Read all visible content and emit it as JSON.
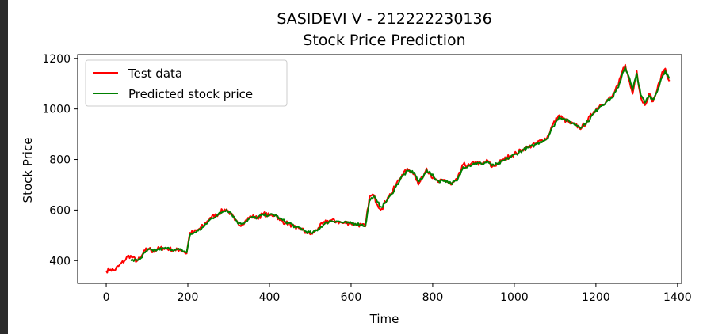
{
  "chart_data": {
    "type": "line",
    "title_line1": "SASIDEVI V - 212222230136",
    "title_line2": "Stock Price Prediction",
    "xlabel": "Time",
    "ylabel": "Stock Price",
    "xlim": [
      -70,
      1410
    ],
    "ylim": [
      310,
      1215
    ],
    "xticks": [
      0,
      200,
      400,
      600,
      800,
      1000,
      1200,
      1400
    ],
    "yticks": [
      400,
      600,
      800,
      1000,
      1200
    ],
    "grid": false,
    "legend_position": "top-left",
    "series": [
      {
        "name": "Test data",
        "color": "#ff0000",
        "points": [
          [
            0,
            360
          ],
          [
            10,
            365
          ],
          [
            20,
            362
          ],
          [
            30,
            378
          ],
          [
            45,
            400
          ],
          [
            55,
            420
          ],
          [
            65,
            412
          ],
          [
            75,
            398
          ],
          [
            85,
            412
          ],
          [
            95,
            440
          ],
          [
            105,
            448
          ],
          [
            115,
            435
          ],
          [
            125,
            445
          ],
          [
            140,
            450
          ],
          [
            155,
            446
          ],
          [
            170,
            440
          ],
          [
            180,
            445
          ],
          [
            190,
            435
          ],
          [
            197,
            428
          ],
          [
            205,
            510
          ],
          [
            215,
            512
          ],
          [
            225,
            522
          ],
          [
            240,
            540
          ],
          [
            255,
            570
          ],
          [
            270,
            580
          ],
          [
            285,
            598
          ],
          [
            295,
            603
          ],
          [
            305,
            585
          ],
          [
            315,
            560
          ],
          [
            325,
            540
          ],
          [
            340,
            555
          ],
          [
            355,
            575
          ],
          [
            370,
            568
          ],
          [
            385,
            585
          ],
          [
            400,
            578
          ],
          [
            415,
            582
          ],
          [
            425,
            560
          ],
          [
            440,
            550
          ],
          [
            455,
            540
          ],
          [
            465,
            525
          ],
          [
            475,
            530
          ],
          [
            490,
            510
          ],
          [
            505,
            505
          ],
          [
            520,
            530
          ],
          [
            535,
            550
          ],
          [
            550,
            560
          ],
          [
            565,
            555
          ],
          [
            580,
            548
          ],
          [
            595,
            550
          ],
          [
            610,
            545
          ],
          [
            625,
            540
          ],
          [
            635,
            535
          ],
          [
            645,
            650
          ],
          [
            655,
            660
          ],
          [
            665,
            620
          ],
          [
            675,
            605
          ],
          [
            690,
            650
          ],
          [
            700,
            670
          ],
          [
            710,
            700
          ],
          [
            725,
            740
          ],
          [
            740,
            760
          ],
          [
            755,
            745
          ],
          [
            765,
            700
          ],
          [
            775,
            730
          ],
          [
            785,
            765
          ],
          [
            795,
            740
          ],
          [
            805,
            720
          ],
          [
            815,
            710
          ],
          [
            830,
            720
          ],
          [
            845,
            700
          ],
          [
            860,
            720
          ],
          [
            875,
            780
          ],
          [
            890,
            775
          ],
          [
            905,
            790
          ],
          [
            920,
            780
          ],
          [
            935,
            795
          ],
          [
            945,
            770
          ],
          [
            960,
            785
          ],
          [
            975,
            800
          ],
          [
            990,
            815
          ],
          [
            1005,
            825
          ],
          [
            1020,
            840
          ],
          [
            1035,
            850
          ],
          [
            1050,
            860
          ],
          [
            1065,
            875
          ],
          [
            1080,
            885
          ],
          [
            1095,
            940
          ],
          [
            1110,
            975
          ],
          [
            1120,
            960
          ],
          [
            1135,
            945
          ],
          [
            1150,
            935
          ],
          [
            1165,
            925
          ],
          [
            1180,
            955
          ],
          [
            1195,
            990
          ],
          [
            1210,
            1015
          ],
          [
            1225,
            1030
          ],
          [
            1240,
            1050
          ],
          [
            1255,
            1095
          ],
          [
            1265,
            1150
          ],
          [
            1272,
            1175
          ],
          [
            1280,
            1120
          ],
          [
            1290,
            1060
          ],
          [
            1300,
            1150
          ],
          [
            1310,
            1045
          ],
          [
            1320,
            1015
          ],
          [
            1330,
            1060
          ],
          [
            1340,
            1030
          ],
          [
            1350,
            1075
          ],
          [
            1360,
            1130
          ],
          [
            1370,
            1160
          ],
          [
            1380,
            1110
          ]
        ]
      },
      {
        "name": "Predicted stock price",
        "color": "#008000",
        "points": [
          [
            60,
            400
          ],
          [
            75,
            402
          ],
          [
            85,
            410
          ],
          [
            95,
            432
          ],
          [
            105,
            445
          ],
          [
            115,
            438
          ],
          [
            125,
            443
          ],
          [
            140,
            448
          ],
          [
            155,
            447
          ],
          [
            170,
            442
          ],
          [
            180,
            444
          ],
          [
            190,
            437
          ],
          [
            197,
            432
          ],
          [
            205,
            500
          ],
          [
            215,
            510
          ],
          [
            225,
            518
          ],
          [
            240,
            535
          ],
          [
            255,
            563
          ],
          [
            270,
            578
          ],
          [
            285,
            593
          ],
          [
            295,
            601
          ],
          [
            305,
            590
          ],
          [
            315,
            567
          ],
          [
            325,
            546
          ],
          [
            340,
            552
          ],
          [
            355,
            570
          ],
          [
            370,
            570
          ],
          [
            385,
            581
          ],
          [
            400,
            580
          ],
          [
            415,
            580
          ],
          [
            425,
            566
          ],
          [
            440,
            553
          ],
          [
            455,
            544
          ],
          [
            465,
            530
          ],
          [
            475,
            529
          ],
          [
            490,
            515
          ],
          [
            505,
            508
          ],
          [
            520,
            525
          ],
          [
            535,
            545
          ],
          [
            550,
            557
          ],
          [
            565,
            556
          ],
          [
            580,
            550
          ],
          [
            595,
            549
          ],
          [
            610,
            546
          ],
          [
            625,
            542
          ],
          [
            635,
            537
          ],
          [
            645,
            635
          ],
          [
            655,
            655
          ],
          [
            665,
            630
          ],
          [
            675,
            612
          ],
          [
            690,
            642
          ],
          [
            700,
            664
          ],
          [
            710,
            693
          ],
          [
            725,
            733
          ],
          [
            740,
            755
          ],
          [
            755,
            748
          ],
          [
            765,
            712
          ],
          [
            775,
            725
          ],
          [
            785,
            758
          ],
          [
            795,
            745
          ],
          [
            805,
            726
          ],
          [
            815,
            714
          ],
          [
            830,
            718
          ],
          [
            845,
            705
          ],
          [
            860,
            716
          ],
          [
            875,
            770
          ],
          [
            890,
            776
          ],
          [
            905,
            786
          ],
          [
            920,
            782
          ],
          [
            935,
            792
          ],
          [
            945,
            776
          ],
          [
            960,
            782
          ],
          [
            975,
            796
          ],
          [
            990,
            810
          ],
          [
            1005,
            822
          ],
          [
            1020,
            836
          ],
          [
            1035,
            847
          ],
          [
            1050,
            857
          ],
          [
            1065,
            871
          ],
          [
            1080,
            882
          ],
          [
            1095,
            930
          ],
          [
            1110,
            968
          ],
          [
            1120,
            962
          ],
          [
            1135,
            950
          ],
          [
            1150,
            938
          ],
          [
            1165,
            928
          ],
          [
            1180,
            950
          ],
          [
            1195,
            983
          ],
          [
            1210,
            1010
          ],
          [
            1225,
            1027
          ],
          [
            1240,
            1045
          ],
          [
            1255,
            1085
          ],
          [
            1265,
            1140
          ],
          [
            1272,
            1165
          ],
          [
            1280,
            1130
          ],
          [
            1290,
            1075
          ],
          [
            1300,
            1140
          ],
          [
            1310,
            1055
          ],
          [
            1320,
            1025
          ],
          [
            1330,
            1052
          ],
          [
            1340,
            1038
          ],
          [
            1350,
            1068
          ],
          [
            1360,
            1120
          ],
          [
            1370,
            1150
          ],
          [
            1380,
            1120
          ]
        ]
      }
    ]
  }
}
